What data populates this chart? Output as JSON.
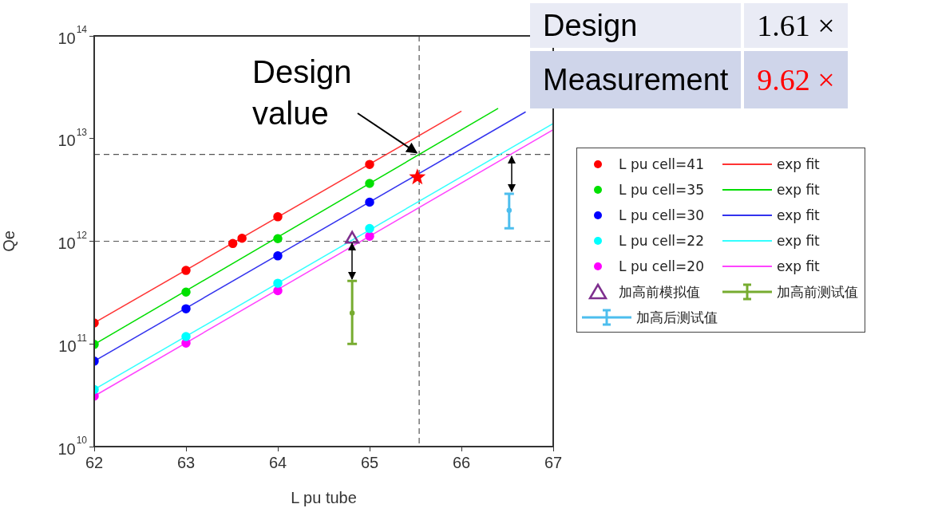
{
  "chart_data": {
    "type": "scatter",
    "xlabel": "L pu tube",
    "ylabel": "Qe",
    "log": "y",
    "grid": false,
    "legend": "right",
    "line_style": "solid",
    "xlim": [
      62,
      67
    ],
    "xticks": [
      62,
      63,
      64,
      65,
      66,
      67
    ],
    "ylim": [
      10000000000.0,
      100000000000000.0
    ],
    "yticks": [
      {
        "value": 10000000000.0,
        "label": "10$^{10}$"
      },
      {
        "value": 100000000000.0,
        "label": "10$^{11}$"
      },
      {
        "value": 1000000000000.0,
        "label": "10$^{12}$"
      },
      {
        "value": 10000000000000.0,
        "label": "10$^{13}$"
      },
      {
        "value": 100000000000000.0,
        "label": "10$^{14}$"
      }
    ],
    "series": [
      {
        "name": "L pu cell=41",
        "color": "#ff0000",
        "marker": "circle",
        "x": [
          62,
          63,
          63.51,
          63.61,
          64,
          65
        ],
        "values": [
          160000000000.0,
          520000000000.0,
          950000000000.0,
          1070000000000.0,
          1730000000000.0,
          5600000000000.0
        ]
      },
      {
        "type": "line",
        "name": "exp fit",
        "color": "#ff3333",
        "marker": "none",
        "x": [
          62,
          66
        ],
        "values": [
          160000000000.0,
          18500000000000.0
        ]
      },
      {
        "name": "L pu cell=35",
        "color": "#00e000",
        "marker": "circle",
        "x": [
          62,
          63,
          64,
          65
        ],
        "values": [
          99000000000.0,
          320000000000.0,
          1060000000000.0,
          3660000000000.0
        ]
      },
      {
        "type": "line",
        "name": "exp fit",
        "color": "#00dd00",
        "marker": "none",
        "x": [
          62,
          66.4
        ],
        "values": [
          99000000000.0,
          19700000000000.0
        ]
      },
      {
        "name": "L pu cell=30",
        "color": "#0000ff",
        "marker": "circle",
        "x": [
          62,
          63,
          64,
          65
        ],
        "values": [
          68000000000.0,
          220000000000.0,
          720000000000.0,
          2400000000000.0
        ]
      },
      {
        "type": "line",
        "name": "exp fit",
        "color": "#3333ee",
        "marker": "none",
        "x": [
          62,
          66.7
        ],
        "values": [
          68000000000.0,
          18200000000000.0
        ]
      },
      {
        "name": "L pu cell=22",
        "color": "#00ffff",
        "marker": "circle",
        "x": [
          62,
          63,
          64,
          65
        ],
        "values": [
          36000000000.0,
          118000000000.0,
          390000000000.0,
          1330000000000.0
        ]
      },
      {
        "type": "line",
        "name": "exp fit",
        "color": "#33ffff",
        "marker": "none",
        "x": [
          62,
          67
        ],
        "values": [
          36000000000.0,
          14000000000000.0
        ]
      },
      {
        "name": "L pu cell=20",
        "color": "#ff00ff",
        "marker": "circle",
        "x": [
          62,
          63,
          64,
          65
        ],
        "values": [
          31000000000.0,
          102000000000.0,
          330000000000.0,
          1120000000000.0
        ]
      },
      {
        "type": "line",
        "name": "exp fit",
        "color": "#ff44ff",
        "marker": "none",
        "x": [
          62,
          67
        ],
        "values": [
          31000000000.0,
          12200000000000.0
        ]
      },
      {
        "name": "加高前模拟值",
        "color": "#7e2f8e",
        "marker": "triangle",
        "x": [
          64.81
        ],
        "values": [
          1050000000000.0
        ]
      },
      {
        "name": "加高前测试值",
        "color": "#77ac30",
        "marker": "circle",
        "x": [
          64.81
        ],
        "values": [
          200000000000.0
        ],
        "errors": [
          [
            100000000000.0,
            410000000000.0
          ]
        ]
      },
      {
        "name": "加高后测试值",
        "color": "#4dbeee",
        "marker": "circle",
        "x": [
          66.52
        ],
        "values": [
          2000000000000.0
        ],
        "errors": [
          [
            1340000000000.0,
            2900000000000.0
          ]
        ]
      },
      {
        "color": "#ff0000",
        "marker": "star",
        "x": [
          65.52
        ],
        "values": [
          4200000000000.0
        ]
      }
    ],
    "ref_lines": [
      {
        "axis": "x",
        "value": 65.54,
        "color": "#555555",
        "line_style": "dashed"
      },
      {
        "axis": "y",
        "value": 7000000000000.0,
        "color": "#555555",
        "line_style": "dashed"
      },
      {
        "axis": "y",
        "value": 1000000000000.0,
        "color": "#555555",
        "line_style": "dashed"
      }
    ],
    "annotations": [
      {
        "text": "Design value",
        "x": 65.54,
        "y": 7000000000000.0
      },
      "Design",
      "1.61 ×",
      "Measurement",
      "9.62 ×"
    ]
  }
}
